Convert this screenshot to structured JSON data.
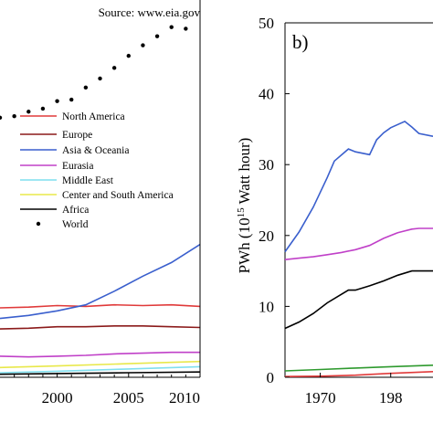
{
  "source_note": "Source: www.eia.gov",
  "chart_data": [
    {
      "type": "line",
      "title": "",
      "xlabel": "",
      "ylabel": "",
      "xlim": [
        1996,
        2010
      ],
      "x_ticks": [
        "2000",
        "2005",
        "2010"
      ],
      "grid": false,
      "legend_placement": "center",
      "series": [
        {
          "name": "North America",
          "color": "#e03a3a",
          "style": "line",
          "x": [
            1996,
            1998,
            2000,
            2002,
            2004,
            2006,
            2008,
            2010
          ],
          "y": [
            4.6,
            4.65,
            4.75,
            4.7,
            4.8,
            4.75,
            4.8,
            4.7
          ]
        },
        {
          "name": "Europe",
          "color": "#8b1a1a",
          "style": "line",
          "x": [
            1996,
            1998,
            2000,
            2002,
            2004,
            2006,
            2008,
            2010
          ],
          "y": [
            3.2,
            3.25,
            3.35,
            3.35,
            3.4,
            3.4,
            3.35,
            3.3
          ]
        },
        {
          "name": "Asia & Oceania",
          "color": "#3a5fcd",
          "style": "line",
          "x": [
            1996,
            1998,
            2000,
            2002,
            2004,
            2006,
            2008,
            2010
          ],
          "y": [
            3.9,
            4.1,
            4.4,
            4.8,
            5.7,
            6.7,
            7.6,
            8.8
          ]
        },
        {
          "name": "Eurasia",
          "color": "#c040c8",
          "style": "line",
          "x": [
            1996,
            1998,
            2000,
            2002,
            2004,
            2006,
            2008,
            2010
          ],
          "y": [
            1.4,
            1.35,
            1.4,
            1.45,
            1.55,
            1.6,
            1.65,
            1.65
          ]
        },
        {
          "name": "Middle East",
          "color": "#7fdfef",
          "style": "line",
          "x": [
            1996,
            2000,
            2005,
            2010
          ],
          "y": [
            0.3,
            0.4,
            0.55,
            0.7
          ]
        },
        {
          "name": "Center and South America",
          "color": "#e8e84a",
          "style": "line",
          "x": [
            1996,
            2000,
            2005,
            2010
          ],
          "y": [
            0.65,
            0.75,
            0.9,
            1.05
          ]
        },
        {
          "name": "Africa",
          "color": "#000000",
          "style": "line",
          "x": [
            1996,
            2000,
            2005,
            2010
          ],
          "y": [
            0.2,
            0.25,
            0.3,
            0.35
          ]
        },
        {
          "name": "World",
          "color": "#000000",
          "style": "dots",
          "x": [
            1996,
            1997,
            1998,
            1999,
            2000,
            2001,
            2002,
            2003,
            2004,
            2005,
            2006,
            2007,
            2008,
            2009
          ],
          "y": [
            17.2,
            17.3,
            17.6,
            17.8,
            18.3,
            18.4,
            19.2,
            19.8,
            20.5,
            21.3,
            22.0,
            22.6,
            23.2,
            23.1
          ]
        }
      ]
    },
    {
      "type": "line",
      "panel_label": "b)",
      "title": "",
      "xlabel": "",
      "ylabel_main": "PWh (10",
      "ylabel_sup": "15",
      "ylabel_tail": " Watt hour)",
      "xlim": [
        1965,
        1986
      ],
      "ylim": [
        0,
        50
      ],
      "x_ticks": [
        "1970",
        "198"
      ],
      "y_ticks": [
        "0",
        "10",
        "20",
        "30",
        "40",
        "50"
      ],
      "grid": false,
      "series": [
        {
          "color": "#3a5fcd",
          "x": [
            1965,
            1967,
            1969,
            1971,
            1972,
            1974,
            1975,
            1977,
            1978,
            1979,
            1980,
            1982,
            1983,
            1984,
            1986
          ],
          "y": [
            17.7,
            20.5,
            24.0,
            28.2,
            30.5,
            32.2,
            31.8,
            31.4,
            33.5,
            34.5,
            35.2,
            36.1,
            35.3,
            34.4,
            34.0
          ]
        },
        {
          "color": "#c040c8",
          "x": [
            1965,
            1967,
            1969,
            1971,
            1973,
            1975,
            1977,
            1979,
            1981,
            1983,
            1984,
            1986
          ],
          "y": [
            16.6,
            16.8,
            17.0,
            17.3,
            17.6,
            18.0,
            18.6,
            19.6,
            20.4,
            20.9,
            21.0,
            21.0
          ]
        },
        {
          "color": "#000000",
          "x": [
            1965,
            1967,
            1969,
            1971,
            1973,
            1974,
            1975,
            1977,
            1979,
            1981,
            1983,
            1984,
            1986
          ],
          "y": [
            6.9,
            7.8,
            9.0,
            10.5,
            11.7,
            12.3,
            12.3,
            12.9,
            13.6,
            14.4,
            15.0,
            15.0,
            15.0
          ]
        },
        {
          "color": "#2e9a2e",
          "x": [
            1965,
            1970,
            1975,
            1980,
            1986
          ],
          "y": [
            0.9,
            1.1,
            1.3,
            1.5,
            1.7
          ]
        },
        {
          "color": "#e03a3a",
          "x": [
            1965,
            1970,
            1975,
            1980,
            1986
          ],
          "y": [
            0.1,
            0.15,
            0.3,
            0.55,
            0.8
          ]
        }
      ]
    }
  ]
}
